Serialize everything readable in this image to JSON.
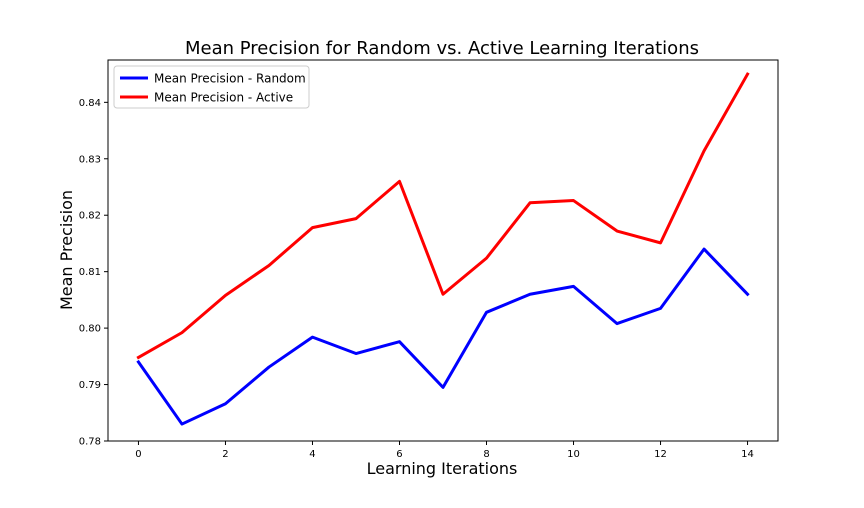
{
  "chart_data": {
    "type": "line",
    "title": "Mean Precision for Random vs. Active Learning Iterations",
    "xlabel": "Learning Iterations",
    "ylabel": "Mean Precision",
    "xlim": [
      -0.7,
      14.7
    ],
    "ylim": [
      0.78,
      0.8475
    ],
    "xticks": [
      0,
      2,
      4,
      6,
      8,
      10,
      12,
      14
    ],
    "yticks": [
      0.78,
      0.79,
      0.8,
      0.81,
      0.82,
      0.83,
      0.84
    ],
    "grid": false,
    "legend_position": "top-left",
    "x": [
      0,
      1,
      2,
      3,
      4,
      5,
      6,
      7,
      8,
      9,
      10,
      11,
      12,
      13,
      14
    ],
    "series": [
      {
        "name": "Mean Precision - Random",
        "color": "#0000ff",
        "values": [
          0.794,
          0.783,
          0.7866,
          0.7931,
          0.7984,
          0.7955,
          0.7976,
          0.7895,
          0.8028,
          0.806,
          0.8074,
          0.8008,
          0.8035,
          0.814,
          0.806
        ]
      },
      {
        "name": "Mean Precision - Active",
        "color": "#ff0000",
        "values": [
          0.7948,
          0.7992,
          0.8058,
          0.8111,
          0.8178,
          0.8194,
          0.826,
          0.806,
          0.8124,
          0.8222,
          0.8226,
          0.8172,
          0.8151,
          0.8314,
          0.845
        ]
      }
    ]
  }
}
